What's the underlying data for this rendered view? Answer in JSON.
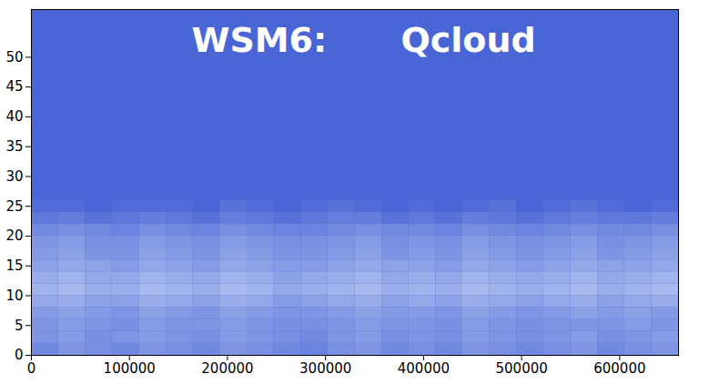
{
  "chart_data": {
    "type": "heatmap",
    "annotations": [
      "WSM6:",
      "Qcloud"
    ],
    "color": "#4a66d6",
    "xlim": [
      0,
      660000
    ],
    "xticks": [
      0,
      100000,
      200000,
      300000,
      400000,
      500000,
      600000
    ],
    "ylim": [
      0,
      58
    ],
    "yticks": [
      0,
      5,
      10,
      15,
      20,
      25,
      30,
      35,
      40,
      45,
      50
    ],
    "zlim": [
      0,
      1
    ],
    "x_bins": [
      0,
      27500,
      55000,
      82500,
      110000,
      137500,
      165000,
      192500,
      220000,
      247500,
      275000,
      302500,
      330000,
      357500,
      385000,
      412500,
      440000,
      467500,
      495000,
      522500,
      550000,
      577500,
      605000,
      632500,
      660000
    ],
    "y_bins": [
      0,
      2,
      4,
      6,
      8,
      10,
      12,
      14,
      16,
      18,
      20,
      22,
      24,
      26
    ],
    "values": [
      [
        0.3,
        0.4,
        0.35,
        0.3,
        0.4,
        0.35,
        0.3,
        0.4,
        0.35,
        0.3,
        0.25,
        0.35,
        0.4,
        0.3,
        0.35,
        0.3,
        0.4,
        0.35,
        0.3,
        0.35,
        0.4,
        0.3,
        0.35,
        0.4
      ],
      [
        0.4,
        0.45,
        0.35,
        0.4,
        0.45,
        0.4,
        0.35,
        0.45,
        0.4,
        0.35,
        0.3,
        0.4,
        0.45,
        0.35,
        0.4,
        0.35,
        0.45,
        0.4,
        0.35,
        0.4,
        0.45,
        0.35,
        0.4,
        0.45
      ],
      [
        0.4,
        0.45,
        0.4,
        0.35,
        0.45,
        0.4,
        0.4,
        0.45,
        0.4,
        0.35,
        0.35,
        0.4,
        0.45,
        0.4,
        0.4,
        0.35,
        0.45,
        0.4,
        0.35,
        0.4,
        0.4,
        0.4,
        0.45,
        0.4
      ],
      [
        0.45,
        0.5,
        0.45,
        0.4,
        0.5,
        0.45,
        0.4,
        0.5,
        0.45,
        0.4,
        0.4,
        0.45,
        0.5,
        0.45,
        0.45,
        0.4,
        0.5,
        0.45,
        0.4,
        0.45,
        0.5,
        0.45,
        0.5,
        0.45
      ],
      [
        0.55,
        0.6,
        0.5,
        0.5,
        0.6,
        0.55,
        0.5,
        0.6,
        0.55,
        0.45,
        0.5,
        0.55,
        0.6,
        0.5,
        0.55,
        0.5,
        0.6,
        0.55,
        0.5,
        0.55,
        0.6,
        0.5,
        0.55,
        0.6
      ],
      [
        0.65,
        0.7,
        0.6,
        0.6,
        0.7,
        0.65,
        0.6,
        0.7,
        0.65,
        0.55,
        0.6,
        0.65,
        0.7,
        0.6,
        0.65,
        0.6,
        0.7,
        0.65,
        0.6,
        0.65,
        0.7,
        0.6,
        0.65,
        0.7
      ],
      [
        0.6,
        0.65,
        0.55,
        0.55,
        0.65,
        0.6,
        0.55,
        0.65,
        0.6,
        0.5,
        0.55,
        0.6,
        0.65,
        0.55,
        0.6,
        0.55,
        0.65,
        0.6,
        0.55,
        0.6,
        0.65,
        0.55,
        0.6,
        0.65
      ],
      [
        0.5,
        0.55,
        0.5,
        0.45,
        0.55,
        0.5,
        0.45,
        0.55,
        0.5,
        0.45,
        0.45,
        0.5,
        0.55,
        0.5,
        0.5,
        0.45,
        0.55,
        0.5,
        0.45,
        0.5,
        0.55,
        0.5,
        0.5,
        0.55
      ],
      [
        0.45,
        0.5,
        0.4,
        0.4,
        0.5,
        0.45,
        0.4,
        0.5,
        0.45,
        0.4,
        0.4,
        0.45,
        0.5,
        0.4,
        0.45,
        0.4,
        0.5,
        0.45,
        0.4,
        0.45,
        0.5,
        0.4,
        0.45,
        0.5
      ],
      [
        0.4,
        0.45,
        0.35,
        0.35,
        0.45,
        0.4,
        0.35,
        0.45,
        0.4,
        0.35,
        0.35,
        0.4,
        0.45,
        0.35,
        0.4,
        0.35,
        0.45,
        0.4,
        0.35,
        0.4,
        0.45,
        0.35,
        0.4,
        0.45
      ],
      [
        0.3,
        0.35,
        0.3,
        0.25,
        0.35,
        0.3,
        0.25,
        0.35,
        0.3,
        0.25,
        0.25,
        0.3,
        0.35,
        0.3,
        0.3,
        0.25,
        0.35,
        0.3,
        0.25,
        0.3,
        0.35,
        0.3,
        0.3,
        0.35
      ],
      [
        0.15,
        0.2,
        0.1,
        0.15,
        0.2,
        0.15,
        0.1,
        0.2,
        0.15,
        0.1,
        0.15,
        0.2,
        0.2,
        0.1,
        0.15,
        0.1,
        0.2,
        0.15,
        0.1,
        0.15,
        0.2,
        0.15,
        0.15,
        0.2
      ],
      [
        0.05,
        0.05,
        0,
        0.05,
        0.05,
        0.05,
        0,
        0.1,
        0.05,
        0,
        0.05,
        0.1,
        0.05,
        0,
        0.05,
        0,
        0.05,
        0.1,
        0,
        0.05,
        0.1,
        0.05,
        0,
        0.05
      ]
    ]
  }
}
